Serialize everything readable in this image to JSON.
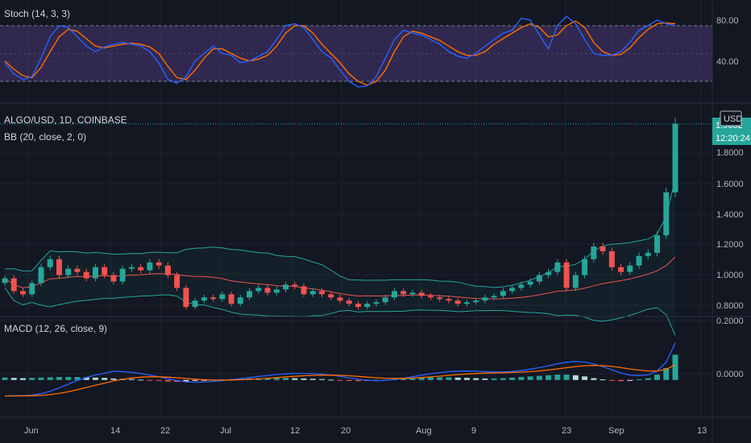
{
  "panels": {
    "stoch": {
      "label": "Stoch (14, 3, 3)",
      "ticks": [
        "80.00",
        "40.00"
      ]
    },
    "main": {
      "symbol": "ALGO/USD, 1D, COINBASE",
      "indicator": "BB (20, close, 2, 0)",
      "currency": "USD",
      "price_partial": "1.9662",
      "countdown": "12:20:24",
      "ticks": [
        "1.8000",
        "1.6000",
        "1.4000",
        "1.2000",
        "1.0000",
        "0.8000"
      ]
    },
    "macd": {
      "label": "MACD (12, 26, close, 9)",
      "ticks": [
        "0.2000",
        "0.0000"
      ]
    }
  },
  "x_axis": {
    "labels": [
      "Jun",
      "14",
      "22",
      "Jul",
      "12",
      "20",
      "Aug",
      "9",
      "23",
      "Sep",
      "13"
    ]
  },
  "colors": {
    "background": "#131722",
    "up": "#26a69a",
    "down": "#ef5350",
    "stoch_k": "#2962ff",
    "stoch_d": "#ff6d00",
    "stoch_band": "#7e57c2",
    "bb_band": "#26a69a",
    "bb_basis": "#ef5350",
    "macd_line": "#2962ff",
    "signal_line": "#ff6d00"
  },
  "chart_data": [
    {
      "type": "line",
      "title": "Stoch (14, 3, 3)",
      "ylim": [
        0,
        100
      ],
      "band": [
        20,
        80
      ],
      "series": [
        {
          "values": [
            40,
            28,
            22,
            25,
            45,
            68,
            80,
            78,
            68,
            58,
            52,
            57,
            60,
            62,
            60,
            58,
            52,
            40,
            22,
            18,
            25,
            42,
            50,
            58,
            50,
            48,
            40,
            42,
            47,
            52,
            65,
            80,
            82,
            78,
            65,
            52,
            45,
            32,
            20,
            14,
            15,
            25,
            45,
            65,
            75,
            72,
            70,
            65,
            60,
            52,
            47,
            45,
            50,
            58,
            65,
            72,
            75,
            88,
            86,
            70,
            55,
            80,
            90,
            82,
            65,
            50,
            48,
            48,
            52,
            62,
            75,
            80,
            86,
            82,
            80
          ]
        },
        {
          "values": [
            42,
            33,
            26,
            24,
            35,
            52,
            68,
            76,
            74,
            66,
            58,
            56,
            58,
            60,
            61,
            60,
            57,
            50,
            36,
            24,
            22,
            32,
            45,
            55,
            55,
            50,
            45,
            42,
            44,
            48,
            58,
            72,
            80,
            80,
            72,
            60,
            50,
            40,
            28,
            20,
            16,
            20,
            32,
            52,
            68,
            74,
            72,
            68,
            64,
            58,
            52,
            48,
            48,
            52,
            60,
            66,
            72,
            78,
            82,
            78,
            68,
            70,
            80,
            85,
            78,
            62,
            52,
            48,
            49,
            56,
            67,
            76,
            82,
            83,
            82
          ]
        }
      ]
    },
    {
      "type": "line",
      "title": "ALGO/USD, 1D, COINBASE",
      "ylim": [
        0.74,
        2.07
      ],
      "series": [
        {
          "values": [
            0.98,
            0.9,
            0.88,
            0.95,
            1.05,
            1.1,
            1.0,
            1.04,
            1.02,
            0.98,
            1.05,
            1.0,
            0.96,
            1.04,
            1.05,
            1.03,
            1.08,
            1.06,
            1.0,
            0.92,
            0.8,
            0.84,
            0.86,
            0.85,
            0.88,
            0.82,
            0.86,
            0.9,
            0.92,
            0.89,
            0.91,
            0.94,
            0.93,
            0.88,
            0.9,
            0.88,
            0.86,
            0.84,
            0.82,
            0.8,
            0.82,
            0.83,
            0.86,
            0.9,
            0.88,
            0.89,
            0.87,
            0.86,
            0.85,
            0.84,
            0.82,
            0.83,
            0.84,
            0.86,
            0.87,
            0.9,
            0.92,
            0.94,
            0.96,
            1.0,
            1.02,
            1.08,
            0.92,
            1.0,
            1.1,
            1.18,
            1.15,
            1.05,
            1.02,
            1.06,
            1.12,
            1.14,
            1.25,
            1.52,
            1.95
          ]
        }
      ]
    },
    {
      "type": "bar",
      "title": "MACD (12, 26, close, 9)",
      "ylim": [
        -0.12,
        0.2
      ],
      "series": [
        {
          "values": [
            0.008,
            0.007,
            0.006,
            0.007,
            0.008,
            0.009,
            0.01,
            0.01,
            0.01,
            0.009,
            0.008,
            0.007,
            0.005,
            0.004,
            0.003,
            0.001,
            -0.001,
            -0.003,
            -0.005,
            -0.006,
            -0.005,
            -0.003,
            -0.001,
            0.001,
            0.002,
            0.003,
            0.004,
            0.005,
            0.006,
            0.006,
            0.007,
            0.007,
            0.006,
            0.005,
            0.004,
            0.003,
            0.001,
            -0.001,
            -0.003,
            -0.004,
            -0.003,
            -0.002,
            0.001,
            0.003,
            0.005,
            0.007,
            0.008,
            0.009,
            0.009,
            0.009,
            0.008,
            0.007,
            0.006,
            0.005,
            0.005,
            0.006,
            0.008,
            0.01,
            0.012,
            0.014,
            0.016,
            0.018,
            0.018,
            0.016,
            0.012,
            0.006,
            0.002,
            -0.002,
            -0.004,
            -0.003,
            0.002,
            0.006,
            0.018,
            0.04,
            0.085
          ]
        }
      ]
    }
  ]
}
